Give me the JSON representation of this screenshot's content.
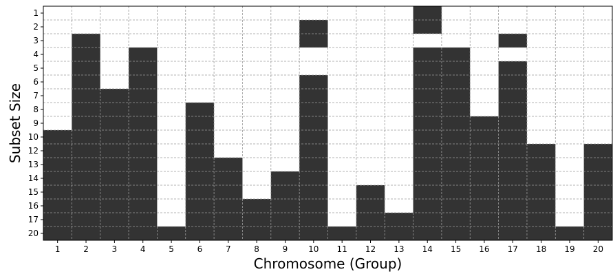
{
  "chart_data": {
    "type": "heatmap",
    "xlabel": "Chromosome (Group)",
    "ylabel": "Subset Size",
    "x_categories": [
      "1",
      "2",
      "3",
      "4",
      "5",
      "6",
      "7",
      "8",
      "9",
      "10",
      "11",
      "12",
      "13",
      "14",
      "15",
      "16",
      "17",
      "18",
      "19",
      "20"
    ],
    "y_categories": [
      "1",
      "2",
      "3",
      "4",
      "5",
      "6",
      "7",
      "8",
      "9",
      "10",
      "12",
      "13",
      "14",
      "15",
      "16",
      "17",
      "20"
    ],
    "selected_color": "#333333",
    "unselected_color": "#ffffff",
    "grid": true,
    "grid_style": "dashed",
    "selected_rows_by_chromosome": [
      [
        "10",
        "12",
        "13",
        "14",
        "15",
        "16",
        "17",
        "20"
      ],
      [
        "3",
        "4",
        "5",
        "6",
        "7",
        "8",
        "9",
        "10",
        "12",
        "13",
        "14",
        "15",
        "16",
        "17",
        "20"
      ],
      [
        "7",
        "8",
        "9",
        "10",
        "12",
        "13",
        "14",
        "15",
        "16",
        "17",
        "20"
      ],
      [
        "4",
        "5",
        "6",
        "7",
        "8",
        "9",
        "10",
        "12",
        "13",
        "14",
        "15",
        "16",
        "17",
        "20"
      ],
      [
        "20"
      ],
      [
        "8",
        "9",
        "10",
        "12",
        "13",
        "14",
        "15",
        "16",
        "17",
        "20"
      ],
      [
        "13",
        "14",
        "15",
        "16",
        "17",
        "20"
      ],
      [
        "16",
        "17",
        "20"
      ],
      [
        "14",
        "15",
        "16",
        "17",
        "20"
      ],
      [
        "2",
        "3",
        "6",
        "7",
        "8",
        "9",
        "10",
        "12",
        "13",
        "14",
        "15",
        "16",
        "17",
        "20"
      ],
      [
        "20"
      ],
      [
        "15",
        "16",
        "17",
        "20"
      ],
      [
        "17",
        "20"
      ],
      [
        "1",
        "2",
        "4",
        "5",
        "6",
        "7",
        "8",
        "9",
        "10",
        "12",
        "13",
        "14",
        "15",
        "16",
        "17",
        "20"
      ],
      [
        "4",
        "5",
        "6",
        "7",
        "8",
        "9",
        "10",
        "12",
        "13",
        "14",
        "15",
        "16",
        "17",
        "20"
      ],
      [
        "9",
        "10",
        "12",
        "13",
        "14",
        "15",
        "16",
        "17",
        "20"
      ],
      [
        "3",
        "5",
        "6",
        "7",
        "8",
        "9",
        "10",
        "12",
        "13",
        "14",
        "15",
        "16",
        "17",
        "20"
      ],
      [
        "12",
        "13",
        "14",
        "15",
        "16",
        "17",
        "20"
      ],
      [
        "20"
      ],
      [
        "12",
        "13",
        "14",
        "15",
        "16",
        "17",
        "20"
      ]
    ]
  }
}
